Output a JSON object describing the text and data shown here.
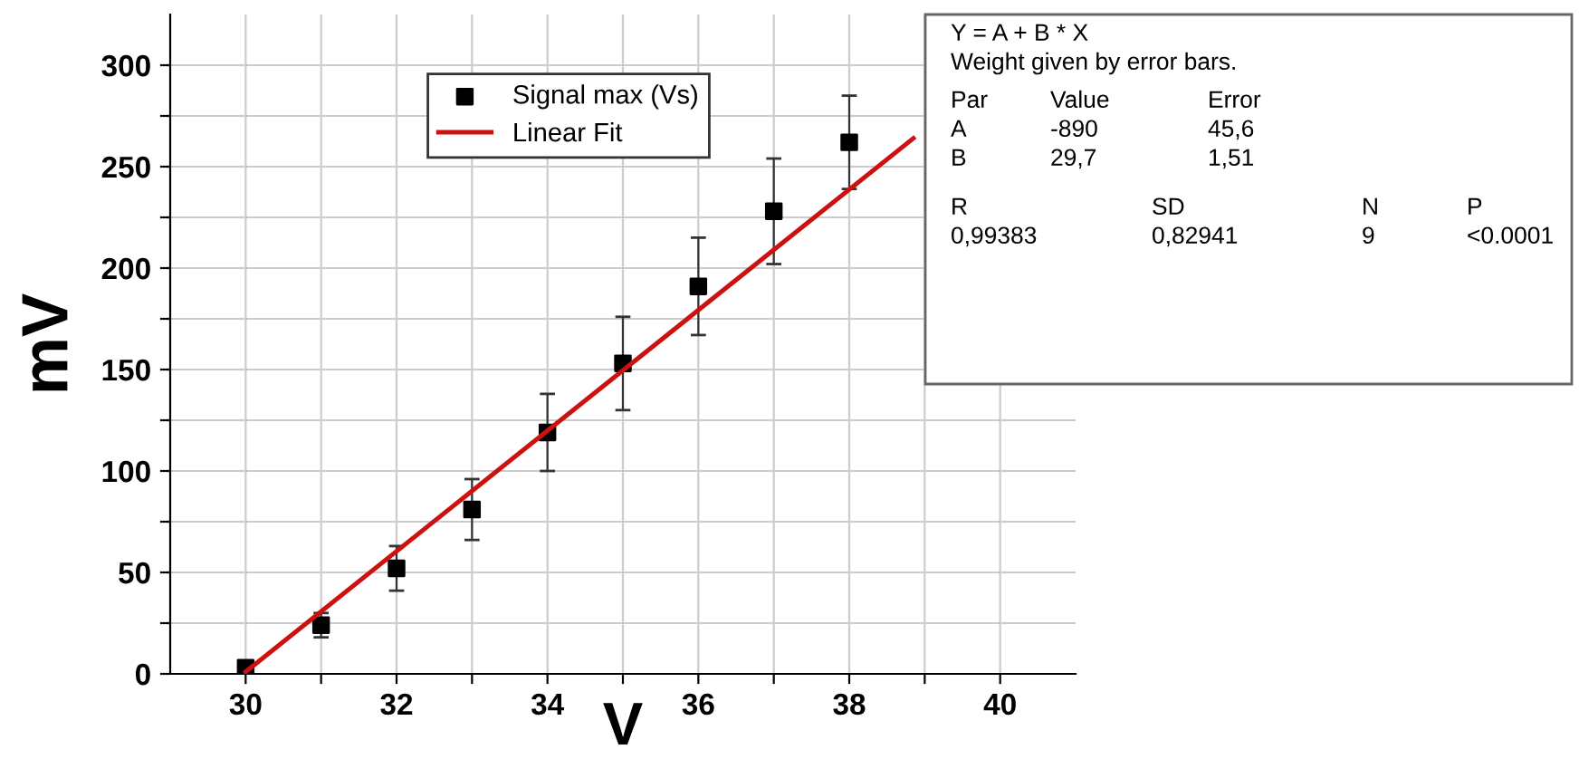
{
  "chart_data": {
    "type": "scatter",
    "xlabel": "V",
    "ylabel": "mV",
    "xlim": [
      29,
      41
    ],
    "xticks": [
      30,
      {
        "value": 31,
        "label": null
      },
      32,
      {
        "value": 33,
        "label": null
      },
      34,
      {
        "value": 35,
        "label": null
      },
      36,
      {
        "value": 37,
        "label": null
      },
      38,
      {
        "value": 39,
        "label": null
      },
      40
    ],
    "ylim": [
      0,
      325
    ],
    "yticks": [
      0,
      {
        "value": 25,
        "label": null
      },
      50,
      {
        "value": 75,
        "label": null
      },
      100,
      {
        "value": 125,
        "label": null
      },
      150,
      {
        "value": 175,
        "label": null
      },
      200,
      {
        "value": 225,
        "label": null
      },
      250,
      {
        "value": 275,
        "label": null
      },
      300
    ],
    "grid": true,
    "legend": "top",
    "series": [
      {
        "name": "Signal max (Vs)",
        "marker": "square",
        "color": "#000000",
        "x": [
          30,
          31,
          32,
          33,
          34,
          35,
          36,
          37,
          38
        ],
        "values": [
          3,
          24,
          52,
          81,
          119,
          153,
          191,
          228,
          262
        ],
        "errors": [
          null,
          6,
          11,
          15,
          19,
          23,
          24,
          26,
          23
        ]
      },
      {
        "name": "Linear Fit",
        "type": "line",
        "marker": "none",
        "line_style": "solid",
        "color": "#cc1111",
        "x": [
          30,
          38.85
        ],
        "values": [
          1,
          264
        ]
      }
    ],
    "annotations": [
      "Y = A + B * X",
      "Weight given by error bars.",
      "Par",
      "Value",
      "Error",
      "A",
      "-890",
      "45,6",
      "B",
      "29,7",
      "1,51",
      "R",
      "SD",
      "N",
      "P",
      "0,99383",
      "0,82941",
      "9",
      "<0.0001"
    ]
  }
}
